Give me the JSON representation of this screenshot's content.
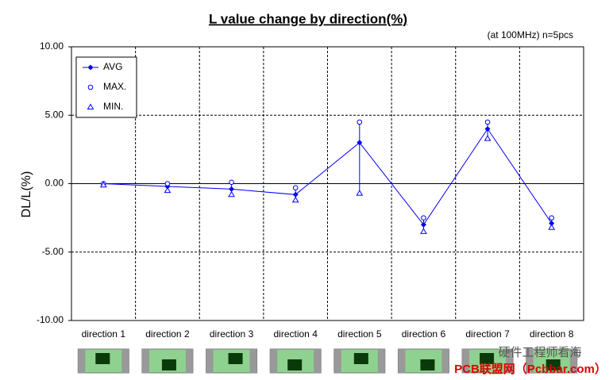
{
  "chart_data": {
    "type": "line",
    "title": "L value change by direction(%)",
    "subtitle": "(at 100MHz)  n=5pcs",
    "y_label": "DL/L(%)",
    "categories": [
      "direction 1",
      "direction 2",
      "direction 3",
      "direction 4",
      "direction 5",
      "direction 6",
      "direction 7",
      "direction 8"
    ],
    "series": [
      {
        "name": "AVG",
        "color": "#0000ff",
        "marker": "diamond",
        "line": true,
        "values": [
          0.0,
          -0.2,
          -0.4,
          -0.8,
          3.0,
          -3.0,
          4.0,
          -2.9
        ]
      },
      {
        "name": "MAX.",
        "color": "#0000ff",
        "marker": "circle",
        "line": false,
        "values": [
          0.0,
          0.0,
          0.1,
          -0.3,
          4.5,
          -2.5,
          4.5,
          -2.5
        ]
      },
      {
        "name": "MIN.",
        "color": "#0000ff",
        "marker": "triangle",
        "line": false,
        "values": [
          -0.1,
          -0.5,
          -0.8,
          -1.2,
          -0.7,
          -3.5,
          3.3,
          -3.2
        ]
      }
    ],
    "ylim": [
      -10,
      10
    ],
    "yticks": [
      {
        "value": 10,
        "label": "10.00"
      },
      {
        "value": 5,
        "label": "5.00"
      },
      {
        "value": 0,
        "label": "0.00"
      },
      {
        "value": -5,
        "label": "-5.00"
      },
      {
        "value": -10,
        "label": "-10.00"
      }
    ],
    "grid": true,
    "legend": "top-left",
    "watermark": [
      "硬件工程师看海",
      "PCB联盟网（Pcbbar.com）"
    ]
  }
}
